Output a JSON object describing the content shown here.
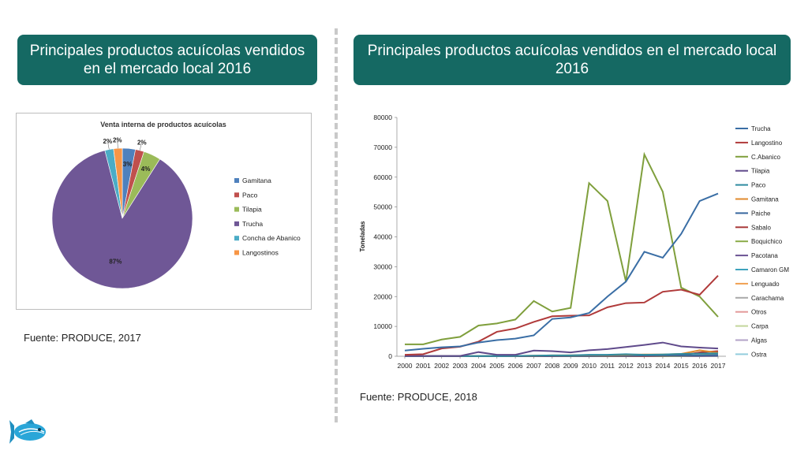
{
  "left_title": "Principales productos acuícolas vendidos en el mercado local 2016",
  "right_title": "Principales productos acuícolas vendidos en el mercado local 2016",
  "left_source": "Fuente: PRODUCE, 2017",
  "right_source": "Fuente: PRODUCE, 2018",
  "colors": {
    "banner": "#156963",
    "divider": "#c9c9c9"
  },
  "chart_data": [
    {
      "type": "pie",
      "title": "Venta interna de productos acuícolas",
      "legend_position": "right",
      "slices": [
        {
          "name": "Gamitana",
          "value": 3,
          "label": "3%",
          "color": "#4f81bd"
        },
        {
          "name": "Paco",
          "value": 2,
          "label": "2%",
          "color": "#c0504d"
        },
        {
          "name": "Tilapia",
          "value": 4,
          "label": "4%",
          "color": "#9bbb59"
        },
        {
          "name": "Trucha",
          "value": 87,
          "label": "87%",
          "color": "#6f5796"
        },
        {
          "name": "Concha de Abanico",
          "value": 2,
          "label": "2%",
          "color": "#4bacc6"
        },
        {
          "name": "Langostinos",
          "value": 2,
          "label": "2%",
          "color": "#f79646"
        }
      ]
    },
    {
      "type": "line",
      "ylabel": "Toneladas",
      "ylim": [
        0,
        80000
      ],
      "yticks": [
        0,
        10000,
        20000,
        30000,
        40000,
        50000,
        60000,
        70000,
        80000
      ],
      "legend_position": "right",
      "grid": false,
      "x": [
        "2000",
        "2001",
        "2002",
        "2003",
        "2004",
        "2005",
        "2006",
        "2007",
        "2008",
        "2009",
        "2010",
        "2011",
        "2012",
        "2013",
        "2014",
        "2015",
        "2016",
        "2017"
      ],
      "series": [
        {
          "name": "Trucha",
          "color": "#3a6ea5",
          "values": [
            1900,
            2500,
            3000,
            3300,
            4600,
            5400,
            5900,
            7000,
            12500,
            13000,
            14500,
            20000,
            25000,
            35000,
            33000,
            41000,
            52000,
            54500
          ]
        },
        {
          "name": "Langostino",
          "color": "#b03a3a",
          "values": [
            500,
            700,
            2600,
            3200,
            4900,
            8200,
            9300,
            11500,
            13400,
            13600,
            13700,
            16400,
            17800,
            18000,
            21600,
            22300,
            20600,
            27000
          ]
        },
        {
          "name": "C.Abanico",
          "color": "#7f9f3c",
          "values": [
            4000,
            4000,
            5600,
            6500,
            10300,
            11000,
            12300,
            18500,
            15000,
            16200,
            58000,
            52000,
            25000,
            67600,
            55100,
            23000,
            20000,
            13200
          ]
        },
        {
          "name": "Tilapia",
          "color": "#5f4a8b",
          "values": [
            100,
            100,
            100,
            100,
            1400,
            500,
            500,
            1900,
            1700,
            1300,
            2000,
            2400,
            3100,
            3800,
            4600,
            3300,
            2900,
            2600
          ]
        },
        {
          "name": "Paco",
          "color": "#2e8ba0",
          "values": [
            50,
            50,
            50,
            50,
            100,
            100,
            100,
            200,
            300,
            300,
            500,
            500,
            700,
            500,
            600,
            800,
            900,
            1000
          ]
        },
        {
          "name": "Gamitana",
          "color": "#e08a2c",
          "values": [
            50,
            50,
            50,
            50,
            100,
            100,
            100,
            200,
            300,
            300,
            400,
            400,
            500,
            600,
            600,
            800,
            2000,
            1200
          ]
        },
        {
          "name": "Paiche",
          "color": "#37679e",
          "values": [
            0,
            0,
            0,
            0,
            0,
            0,
            50,
            50,
            100,
            100,
            100,
            200,
            200,
            300,
            300,
            300,
            300,
            400
          ]
        },
        {
          "name": "Sabalo",
          "color": "#a83838",
          "values": [
            0,
            0,
            0,
            0,
            0,
            0,
            0,
            0,
            0,
            50,
            50,
            100,
            100,
            100,
            200,
            300,
            1300,
            1700
          ]
        },
        {
          "name": "Boquichico",
          "color": "#8aab47",
          "values": [
            0,
            0,
            0,
            0,
            0,
            0,
            0,
            0,
            0,
            0,
            50,
            50,
            100,
            100,
            100,
            200,
            300,
            500
          ]
        },
        {
          "name": "Pacotana",
          "color": "#6b5394",
          "values": [
            0,
            0,
            0,
            0,
            0,
            0,
            0,
            0,
            0,
            0,
            0,
            50,
            50,
            50,
            100,
            100,
            100,
            200
          ]
        },
        {
          "name": "Camaron GM",
          "color": "#3ea3bd",
          "values": [
            0,
            0,
            0,
            0,
            0,
            0,
            0,
            0,
            0,
            0,
            0,
            0,
            50,
            50,
            50,
            100,
            100,
            100
          ]
        },
        {
          "name": "Lenguado",
          "color": "#f0a050",
          "values": [
            0,
            0,
            0,
            0,
            0,
            0,
            50,
            100,
            200,
            300,
            300,
            200,
            200,
            200,
            100,
            100,
            100,
            100
          ]
        },
        {
          "name": "Carachama",
          "color": "#a9a9a9",
          "values": [
            0,
            0,
            0,
            0,
            0,
            0,
            0,
            0,
            0,
            0,
            0,
            0,
            0,
            0,
            50,
            50,
            50,
            50
          ]
        },
        {
          "name": "Otros",
          "color": "#e39a9a",
          "values": [
            0,
            0,
            0,
            0,
            0,
            0,
            0,
            0,
            0,
            0,
            0,
            0,
            0,
            0,
            0,
            50,
            50,
            50
          ]
        },
        {
          "name": "Carpa",
          "color": "#c3d69b",
          "values": [
            0,
            0,
            0,
            0,
            0,
            0,
            0,
            0,
            0,
            0,
            0,
            0,
            0,
            0,
            0,
            0,
            50,
            50
          ]
        },
        {
          "name": "Algas",
          "color": "#b3a2c7",
          "values": [
            0,
            0,
            0,
            0,
            0,
            0,
            0,
            0,
            0,
            0,
            0,
            0,
            0,
            0,
            0,
            0,
            0,
            50
          ]
        },
        {
          "name": "Ostra",
          "color": "#93cddd",
          "values": [
            0,
            0,
            0,
            0,
            0,
            0,
            0,
            0,
            0,
            0,
            0,
            0,
            0,
            0,
            0,
            0,
            0,
            20
          ]
        }
      ]
    }
  ]
}
